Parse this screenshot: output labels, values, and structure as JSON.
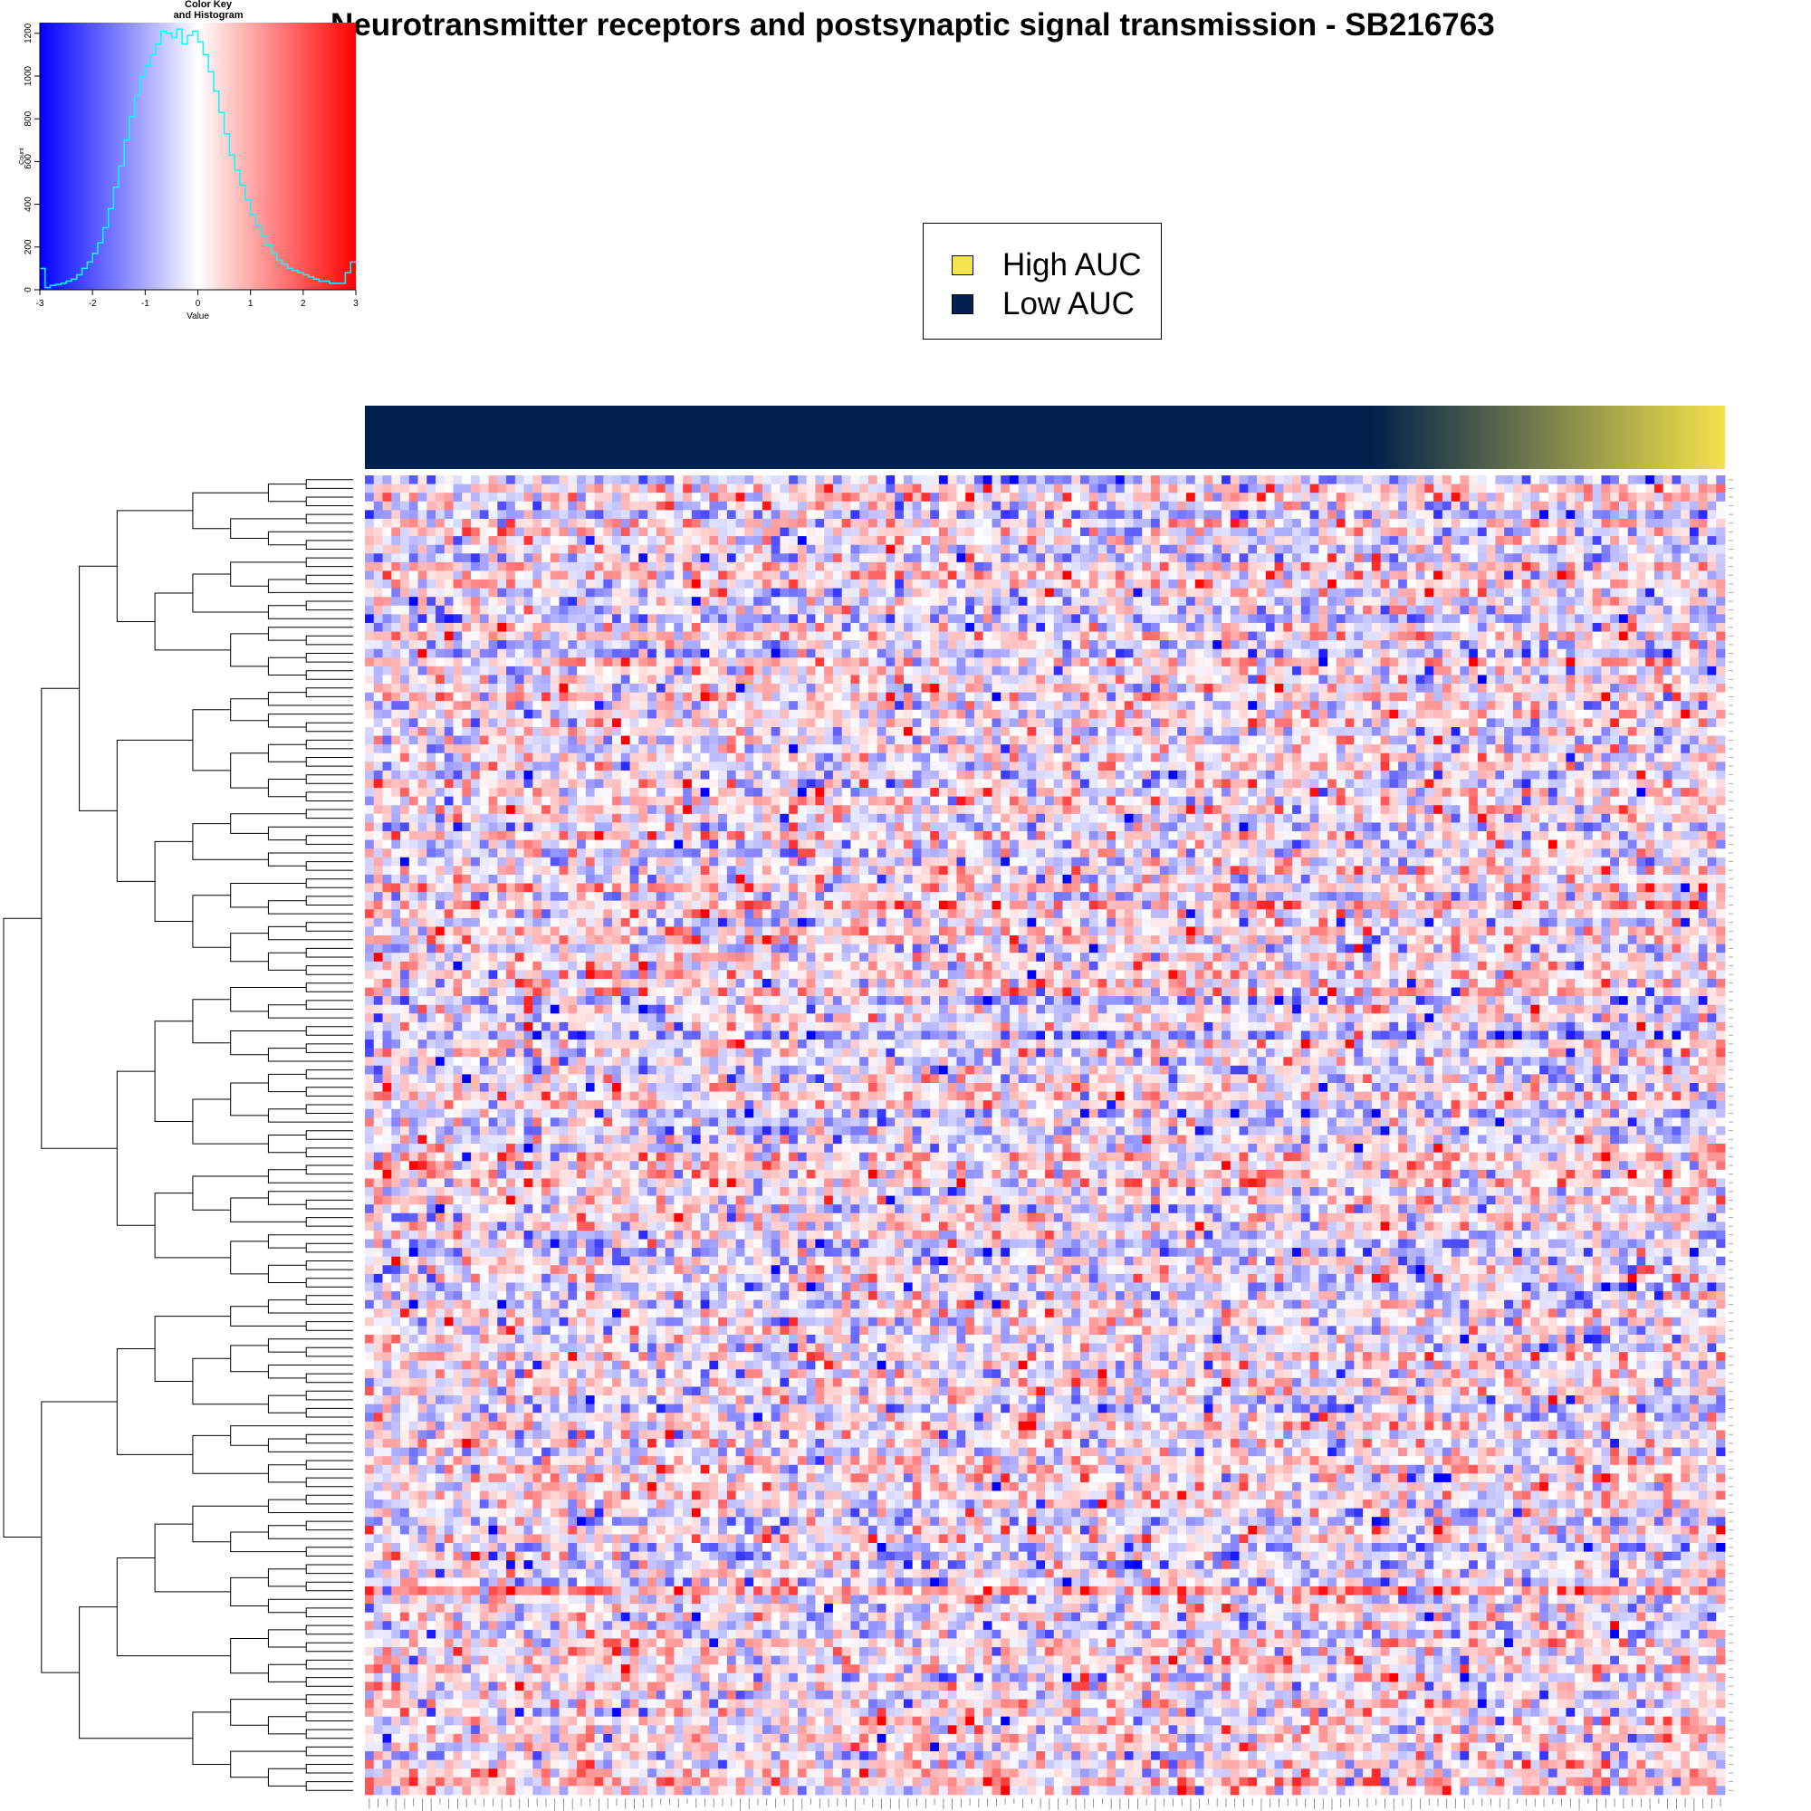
{
  "title": "Neurotransmitter receptors and postsynaptic signal transmission - SB216763",
  "color_key": {
    "title_line1": "Color Key",
    "title_line2": "and Histogram",
    "xlabel": "Value",
    "ylabel": "Count",
    "x_ticks": [
      "-3",
      "-2",
      "-1",
      "0",
      "1",
      "2",
      "3"
    ],
    "y_ticks": [
      "0",
      "200",
      "400",
      "600",
      "800",
      "1000",
      "1200"
    ],
    "colors": {
      "low": "#0000FF",
      "mid": "#FFFFFF",
      "high": "#FF0000",
      "histogram": "#00FFFF"
    }
  },
  "legend": {
    "items": [
      {
        "label": "High AUC",
        "color": "#F5E34A"
      },
      {
        "label": "Low AUC",
        "color": "#00204D"
      }
    ]
  },
  "chart_data": [
    {
      "type": "bar",
      "title": "Color Key and Histogram",
      "xlabel": "Value",
      "ylabel": "Count",
      "xlim": [
        -3,
        3
      ],
      "ylim": [
        0,
        1250
      ],
      "bin_edges": [
        -3,
        -2.9,
        -2.8,
        -2.7,
        -2.6,
        -2.5,
        -2.4,
        -2.3,
        -2.2,
        -2.1,
        -2.0,
        -1.9,
        -1.8,
        -1.7,
        -1.6,
        -1.5,
        -1.4,
        -1.3,
        -1.2,
        -1.1,
        -1.0,
        -0.9,
        -0.8,
        -0.7,
        -0.6,
        -0.5,
        -0.4,
        -0.3,
        -0.2,
        -0.1,
        0.0,
        0.1,
        0.2,
        0.3,
        0.4,
        0.5,
        0.6,
        0.7,
        0.8,
        0.9,
        1.0,
        1.1,
        1.2,
        1.3,
        1.4,
        1.5,
        1.6,
        1.7,
        1.8,
        1.9,
        2.0,
        2.1,
        2.2,
        2.3,
        2.4,
        2.5,
        2.6,
        2.7,
        2.8,
        2.9,
        3.0
      ],
      "values": [
        100,
        10,
        20,
        25,
        30,
        40,
        50,
        70,
        100,
        130,
        170,
        220,
        290,
        380,
        480,
        580,
        700,
        810,
        910,
        1000,
        1050,
        1100,
        1150,
        1210,
        1200,
        1180,
        1220,
        1150,
        1190,
        1210,
        1160,
        1100,
        1020,
        930,
        830,
        730,
        630,
        560,
        490,
        420,
        350,
        300,
        250,
        210,
        170,
        140,
        120,
        100,
        90,
        80,
        70,
        60,
        50,
        40,
        40,
        30,
        30,
        30,
        80,
        130
      ]
    },
    {
      "type": "heatmap",
      "title": "Neurotransmitter receptors and postsynaptic signal transmission - SB216763",
      "value_range": [
        -3,
        3
      ],
      "n_rows": 152,
      "n_cols": 154,
      "column_annotation": {
        "low_label": "Low AUC",
        "high_label": "High AUC",
        "low_fraction": 0.74
      }
    }
  ]
}
